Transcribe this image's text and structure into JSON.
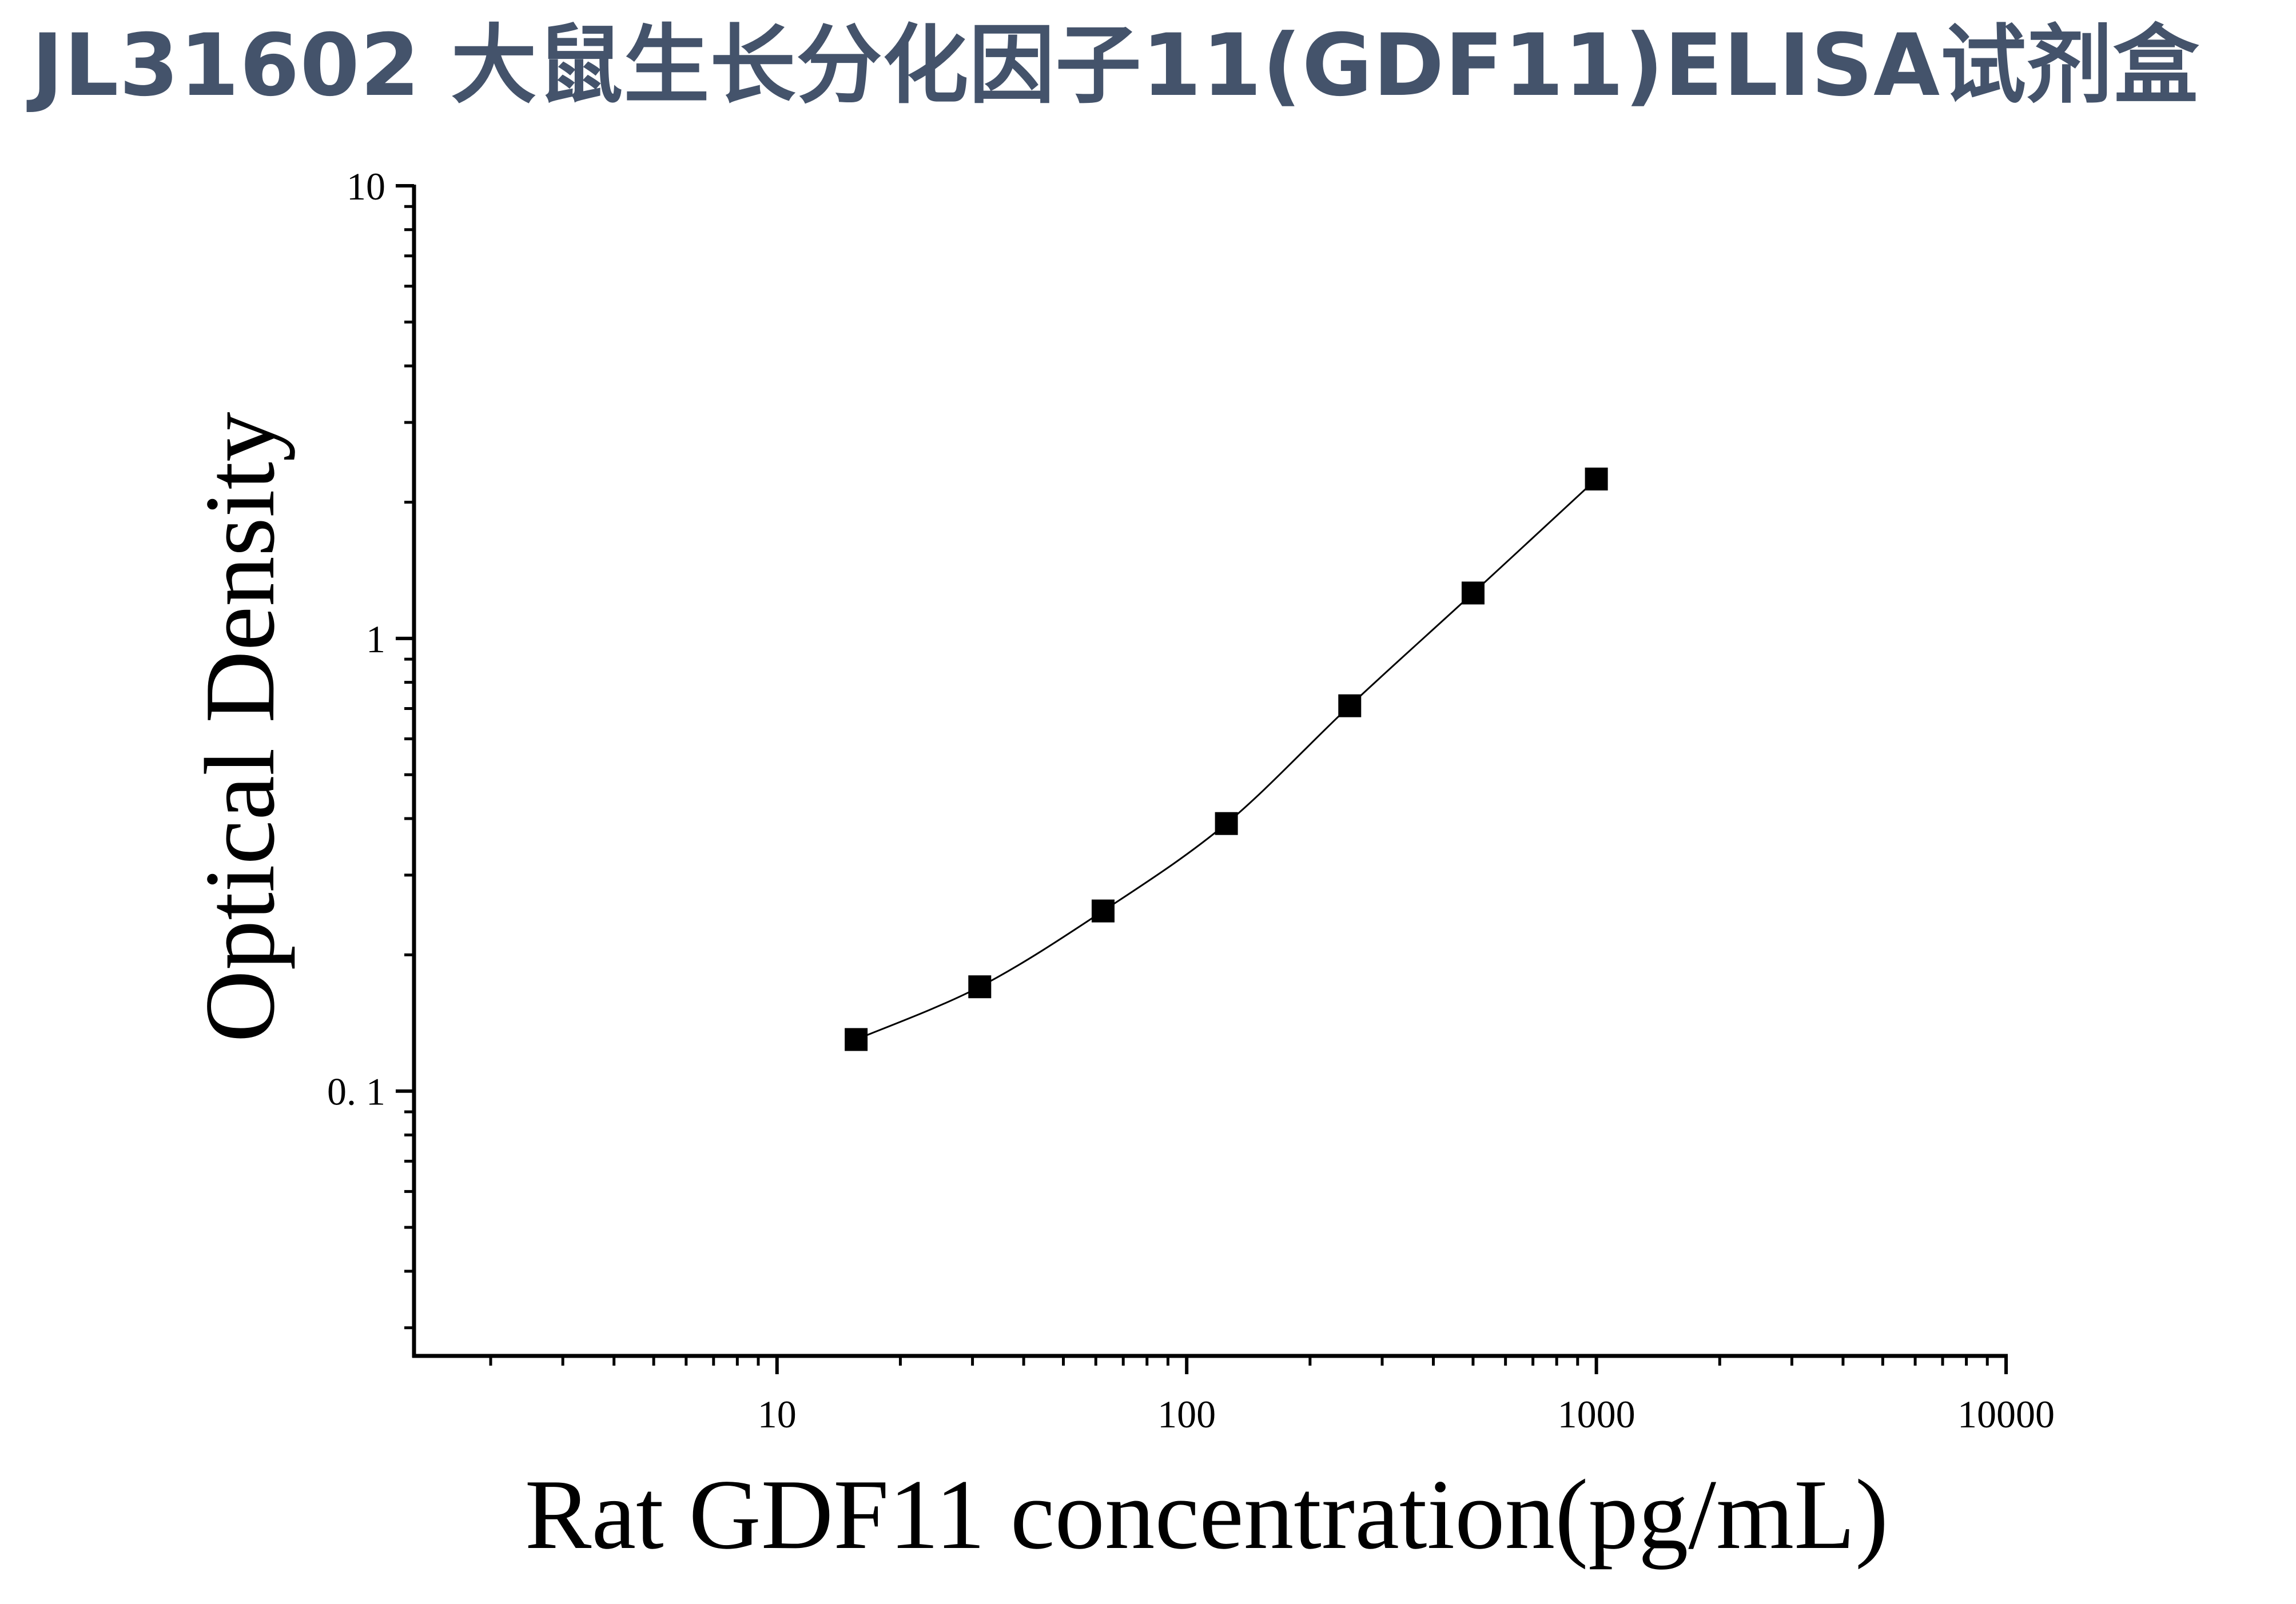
{
  "title": "JL31602 大鼠生长分化因子11(GDF11)ELISA试剂盒",
  "title_color": "#44536b",
  "chart_data": {
    "type": "scatter",
    "xlabel": "Rat GDF11 concentration(pg/mL)",
    "ylabel": "Optical Density",
    "xscale": "log",
    "yscale": "log",
    "xlim": [
      1.3,
      10000
    ],
    "ylim": [
      0.026,
      10
    ],
    "x_ticks": [
      {
        "value": 10,
        "label": "10"
      },
      {
        "value": 100,
        "label": "100"
      },
      {
        "value": 1000,
        "label": "1000"
      },
      {
        "value": 10000,
        "label": "10000"
      }
    ],
    "y_ticks": [
      {
        "value": 0.1,
        "label": "0. 1"
      },
      {
        "value": 1,
        "label": "1"
      },
      {
        "value": 10,
        "label": "10"
      }
    ],
    "series": [
      {
        "x": [
          15.6,
          31.25,
          62.5,
          125,
          250,
          500,
          1000
        ],
        "y": [
          0.13,
          0.17,
          0.25,
          0.39,
          0.71,
          1.26,
          2.25
        ],
        "marker": "square",
        "fit_line": true
      }
    ],
    "marker_color": "#000000",
    "grid": false,
    "legend": "none"
  }
}
